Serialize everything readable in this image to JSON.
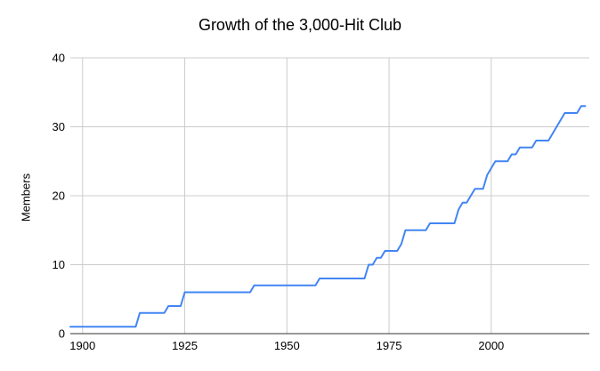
{
  "page": {
    "background_color": "#ffffff"
  },
  "chart_data": {
    "type": "line",
    "title": "Growth of the 3,000-Hit Club",
    "xlabel": "",
    "ylabel": "Members",
    "x_tick_labels": [
      "1900",
      "1925",
      "1950",
      "1975",
      "2000"
    ],
    "x_tick_years": [
      1900,
      1925,
      1950,
      1975,
      2000
    ],
    "y_tick_labels": [
      "0",
      "10",
      "20",
      "30",
      "40"
    ],
    "y_ticks": [
      0,
      10,
      20,
      30,
      40
    ],
    "xlim": [
      1897,
      2024
    ],
    "ylim": [
      0,
      40
    ],
    "grid": true,
    "legend_position": "none",
    "line_color": "#4285f4",
    "gridline_color": "#cccccc",
    "axis_line_color": "#333333",
    "series": [
      {
        "name": "Members",
        "description": "Cumulative members of the 3,000-hit club; value holds flat between step years",
        "step_points": [
          [
            1897,
            1
          ],
          [
            1914,
            3
          ],
          [
            1921,
            4
          ],
          [
            1925,
            6
          ],
          [
            1942,
            7
          ],
          [
            1958,
            8
          ],
          [
            1970,
            10
          ],
          [
            1972,
            11
          ],
          [
            1974,
            12
          ],
          [
            1978,
            13
          ],
          [
            1979,
            15
          ],
          [
            1985,
            16
          ],
          [
            1992,
            18
          ],
          [
            1993,
            19
          ],
          [
            1995,
            20
          ],
          [
            1996,
            21
          ],
          [
            1999,
            23
          ],
          [
            2000,
            24
          ],
          [
            2001,
            25
          ],
          [
            2005,
            26
          ],
          [
            2007,
            27
          ],
          [
            2011,
            28
          ],
          [
            2015,
            29
          ],
          [
            2016,
            30
          ],
          [
            2017,
            31
          ],
          [
            2018,
            32
          ],
          [
            2022,
            33
          ]
        ],
        "end_year": 2023,
        "end_value": 33
      }
    ]
  }
}
